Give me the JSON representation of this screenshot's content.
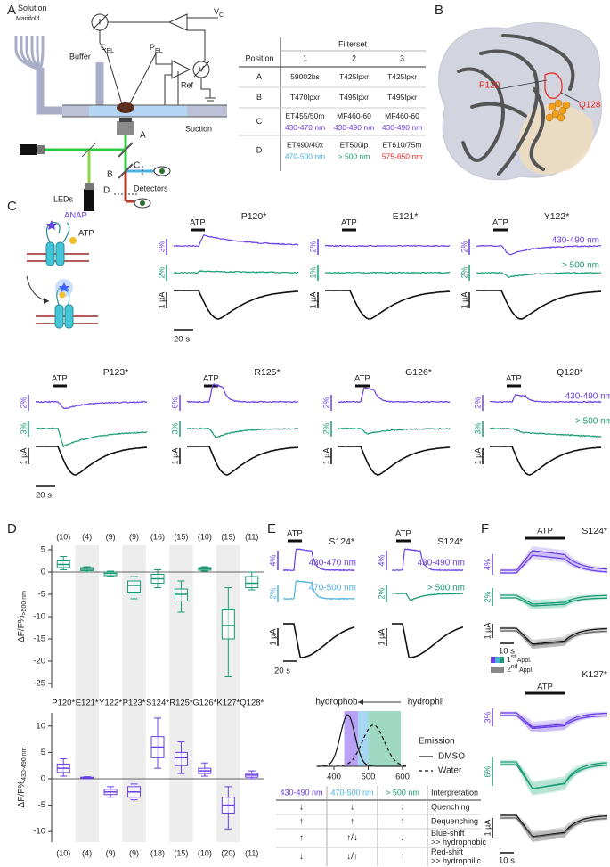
{
  "panel_labels": [
    "A",
    "B",
    "C",
    "D",
    "E",
    "F"
  ],
  "setup": {
    "manifold": [
      "Solution",
      "Manifold"
    ],
    "buffer": "Buffer",
    "cel": "C",
    "cel_sub": "EL",
    "pel": "P",
    "pel_sub": "EL",
    "ref": "Ref",
    "vc": "V",
    "vc_sub": "C",
    "i": "I",
    "v": "V",
    "suction": "Suction",
    "ports": [
      "A",
      "B",
      "C",
      "D"
    ],
    "leds": "LEDs",
    "detectors": "Detectors"
  },
  "filter_table": {
    "header": "Filterset",
    "columns": [
      "Position",
      "1",
      "2",
      "3"
    ],
    "rows": [
      {
        "position": "A",
        "cells": [
          {
            "filter": "59002bs"
          },
          {
            "filter": "T425lpxr"
          },
          {
            "filter": "T425lpxr"
          }
        ]
      },
      {
        "position": "B",
        "cells": [
          {
            "filter": "T470lpxr"
          },
          {
            "filter": "T495lpxr"
          },
          {
            "filter": "T495lpxr"
          }
        ]
      },
      {
        "position": "C",
        "cells": [
          {
            "filter": "ET455/50m",
            "band": "430-470 nm",
            "color": "#6a3fe6"
          },
          {
            "filter": "MF460-60",
            "band": "430-490 nm",
            "color": "#6a3fe6"
          },
          {
            "filter": "MF460-60",
            "band": "430-490 nm",
            "color": "#6a3fe6"
          }
        ]
      },
      {
        "position": "D",
        "cells": [
          {
            "filter": "ET490/40x",
            "band": "470-500 nm",
            "color": "#4fb0e3"
          },
          {
            "filter": "ET500lp",
            "band": "> 500 nm",
            "color": "#1b9a76"
          },
          {
            "filter": "ET610/75m",
            "band": "575-650 nm",
            "color": "#e3261b"
          }
        ]
      }
    ]
  },
  "structure": {
    "residues": [
      "P120",
      "Q128"
    ]
  },
  "panel_c": {
    "cartoon": {
      "anap": "ANAP",
      "atp": "ATP"
    },
    "traces": [
      {
        "name": "P120*",
        "atp": "ATP",
        "scales": [
          "3%",
          "2%",
          "1 µA"
        ],
        "time": "20 s"
      },
      {
        "name": "E121*",
        "atp": "ATP",
        "scales": [
          "2%",
          "1%",
          "1 µA"
        ]
      },
      {
        "name": "Y122*",
        "atp": "ATP",
        "scales": [
          "2%",
          "2%",
          "1 µA"
        ],
        "bands": [
          "430-490 nm",
          "> 500 nm"
        ]
      },
      {
        "name": "P123*",
        "atp": "ATP",
        "scales": [
          "2%",
          "3%",
          "1 µA"
        ],
        "time": "20 s"
      },
      {
        "name": "R125*",
        "atp": "ATP",
        "scales": [
          "6%",
          "3%",
          "1 µA"
        ]
      },
      {
        "name": "G126*",
        "atp": "ATP",
        "scales": [
          "2%",
          "2%",
          "1 µA"
        ]
      },
      {
        "name": "Q128*",
        "atp": "ATP",
        "scales": [
          "2%",
          "3%",
          "1 µA"
        ],
        "bands": [
          "430-490 nm",
          "> 500 nm"
        ]
      }
    ]
  },
  "chart_data": [
    {
      "type": "box",
      "ylabel": "ΔF/F%",
      "ylabel_sub": ">500 nm",
      "color": "#1b9a76",
      "categories": [
        "P120*",
        "E121*",
        "Y122*",
        "P123*",
        "S124*",
        "R125*",
        "G126*",
        "K127*",
        "Q128*"
      ],
      "counts": [
        "(10)",
        "(4)",
        "(9)",
        "(9)",
        "(16)",
        "(15)",
        "(10)",
        "(19)",
        "(11)"
      ],
      "ylim": [
        -26,
        6
      ],
      "yticks": [
        5,
        0,
        -5,
        -10,
        -15,
        -20,
        -25
      ],
      "boxes": [
        {
          "q1": 1,
          "median": 1.7,
          "q3": 2.5,
          "low": 0.5,
          "high": 3.5
        },
        {
          "q1": 0.3,
          "median": 0.6,
          "q3": 1,
          "low": 0,
          "high": 1.2
        },
        {
          "q1": -0.8,
          "median": -0.3,
          "q3": 0,
          "low": -1,
          "high": 0.2
        },
        {
          "q1": -4.5,
          "median": -3,
          "q3": -2,
          "low": -6,
          "high": -1
        },
        {
          "q1": -2.5,
          "median": -1.5,
          "q3": -0.5,
          "low": -3.5,
          "high": 0.5
        },
        {
          "q1": -6.5,
          "median": -5,
          "q3": -3.8,
          "low": -9,
          "high": -2
        },
        {
          "q1": 0.4,
          "median": 0.7,
          "q3": 1,
          "low": 0.2,
          "high": 1.2
        },
        {
          "q1": -15,
          "median": -12,
          "q3": -8.5,
          "low": -23.5,
          "high": -3.5
        },
        {
          "q1": -3.5,
          "median": -2.5,
          "q3": -1,
          "low": -4,
          "high": 0
        }
      ]
    },
    {
      "type": "box",
      "ylabel": "ΔF/F%",
      "ylabel_sub": "430-490 nm",
      "color": "#6a3fe6",
      "counts": [
        "(10)",
        "(4)",
        "(9)",
        "(9)",
        "(18)",
        "(15)",
        "(10)",
        "(20)",
        "(11)"
      ],
      "ylim": [
        -12,
        12.5
      ],
      "yticks": [
        10,
        5,
        0,
        -5,
        -10
      ],
      "boxes": [
        {
          "q1": 1.2,
          "median": 2,
          "q3": 2.8,
          "low": 0.5,
          "high": 3.8
        },
        {
          "q1": 0.1,
          "median": 0.2,
          "q3": 0.3,
          "low": 0,
          "high": 0.4
        },
        {
          "q1": -3,
          "median": -2.5,
          "q3": -2,
          "low": -3.5,
          "high": -1.5
        },
        {
          "q1": -3.5,
          "median": -2.5,
          "q3": -1.5,
          "low": -4,
          "high": -1
        },
        {
          "q1": 4,
          "median": 6,
          "q3": 8,
          "low": 2,
          "high": 11.5
        },
        {
          "q1": 2.5,
          "median": 4,
          "q3": 5,
          "low": 1,
          "high": 7
        },
        {
          "q1": 1,
          "median": 1.5,
          "q3": 2,
          "low": 0.5,
          "high": 3
        },
        {
          "q1": -6.5,
          "median": -5,
          "q3": -3.5,
          "low": -9.5,
          "high": -1.5
        },
        {
          "q1": 0.3,
          "median": 0.7,
          "q3": 1,
          "low": 0,
          "high": 1.5
        }
      ]
    }
  ],
  "panel_e": {
    "traces": [
      {
        "name": "S124*",
        "atp": "ATP",
        "scales": [
          "4%",
          "2%",
          "1 µA"
        ],
        "bands": [
          "430-470 nm",
          "470-500 nm"
        ],
        "time": "20 s"
      },
      {
        "name": "S124*",
        "atp": "ATP",
        "scales": [
          "4%",
          "2%",
          "1 µA"
        ],
        "bands": [
          "430-490 nm",
          "> 500 nm"
        ]
      }
    ],
    "spectrum": {
      "hydrophob": "hydrophob",
      "hydrophil": "hydrophil",
      "xticks": [
        400,
        500,
        600
      ],
      "legend_title": "Emission",
      "dmso": "DMSO",
      "water": "Water"
    },
    "interpretation": {
      "header": [
        {
          "text": "430-490 nm",
          "color": "#6a3fe6"
        },
        {
          "text": "470-500 nm",
          "color": "#4fb0e3"
        },
        {
          "text": "> 500 nm",
          "color": "#1b9a76"
        },
        {
          "text": "Interpretation",
          "color": "#222"
        }
      ],
      "rows": [
        {
          "cells": [
            "↓",
            "↓",
            "↓"
          ],
          "label": [
            "Quenching"
          ]
        },
        {
          "cells": [
            "↑",
            "↑",
            "↑"
          ],
          "label": [
            "Dequenching"
          ]
        },
        {
          "cells": [
            "↑",
            "↑/↓",
            "↓"
          ],
          "label": [
            "Blue-shift",
            ">> hydrophobic"
          ]
        },
        {
          "cells": [
            "↓",
            "↓/↑",
            "↑"
          ],
          "label": [
            "Red-shift",
            ">> hydrophilic"
          ]
        }
      ]
    }
  },
  "panel_f": {
    "s124": {
      "name": "S124*",
      "atp": "ATP",
      "scales": [
        "4%",
        "2%",
        "1 µA"
      ],
      "time": "10 s"
    },
    "legend": [
      {
        "num": "1",
        "sup": "st",
        "rest": " Appl."
      },
      {
        "num": "2",
        "sup": "nd",
        "rest": " Appl."
      }
    ],
    "k127": {
      "name": "K127*",
      "atp": "ATP",
      "scales": [
        "3%",
        "6%",
        "1 µA"
      ],
      "time": "10 s"
    }
  }
}
